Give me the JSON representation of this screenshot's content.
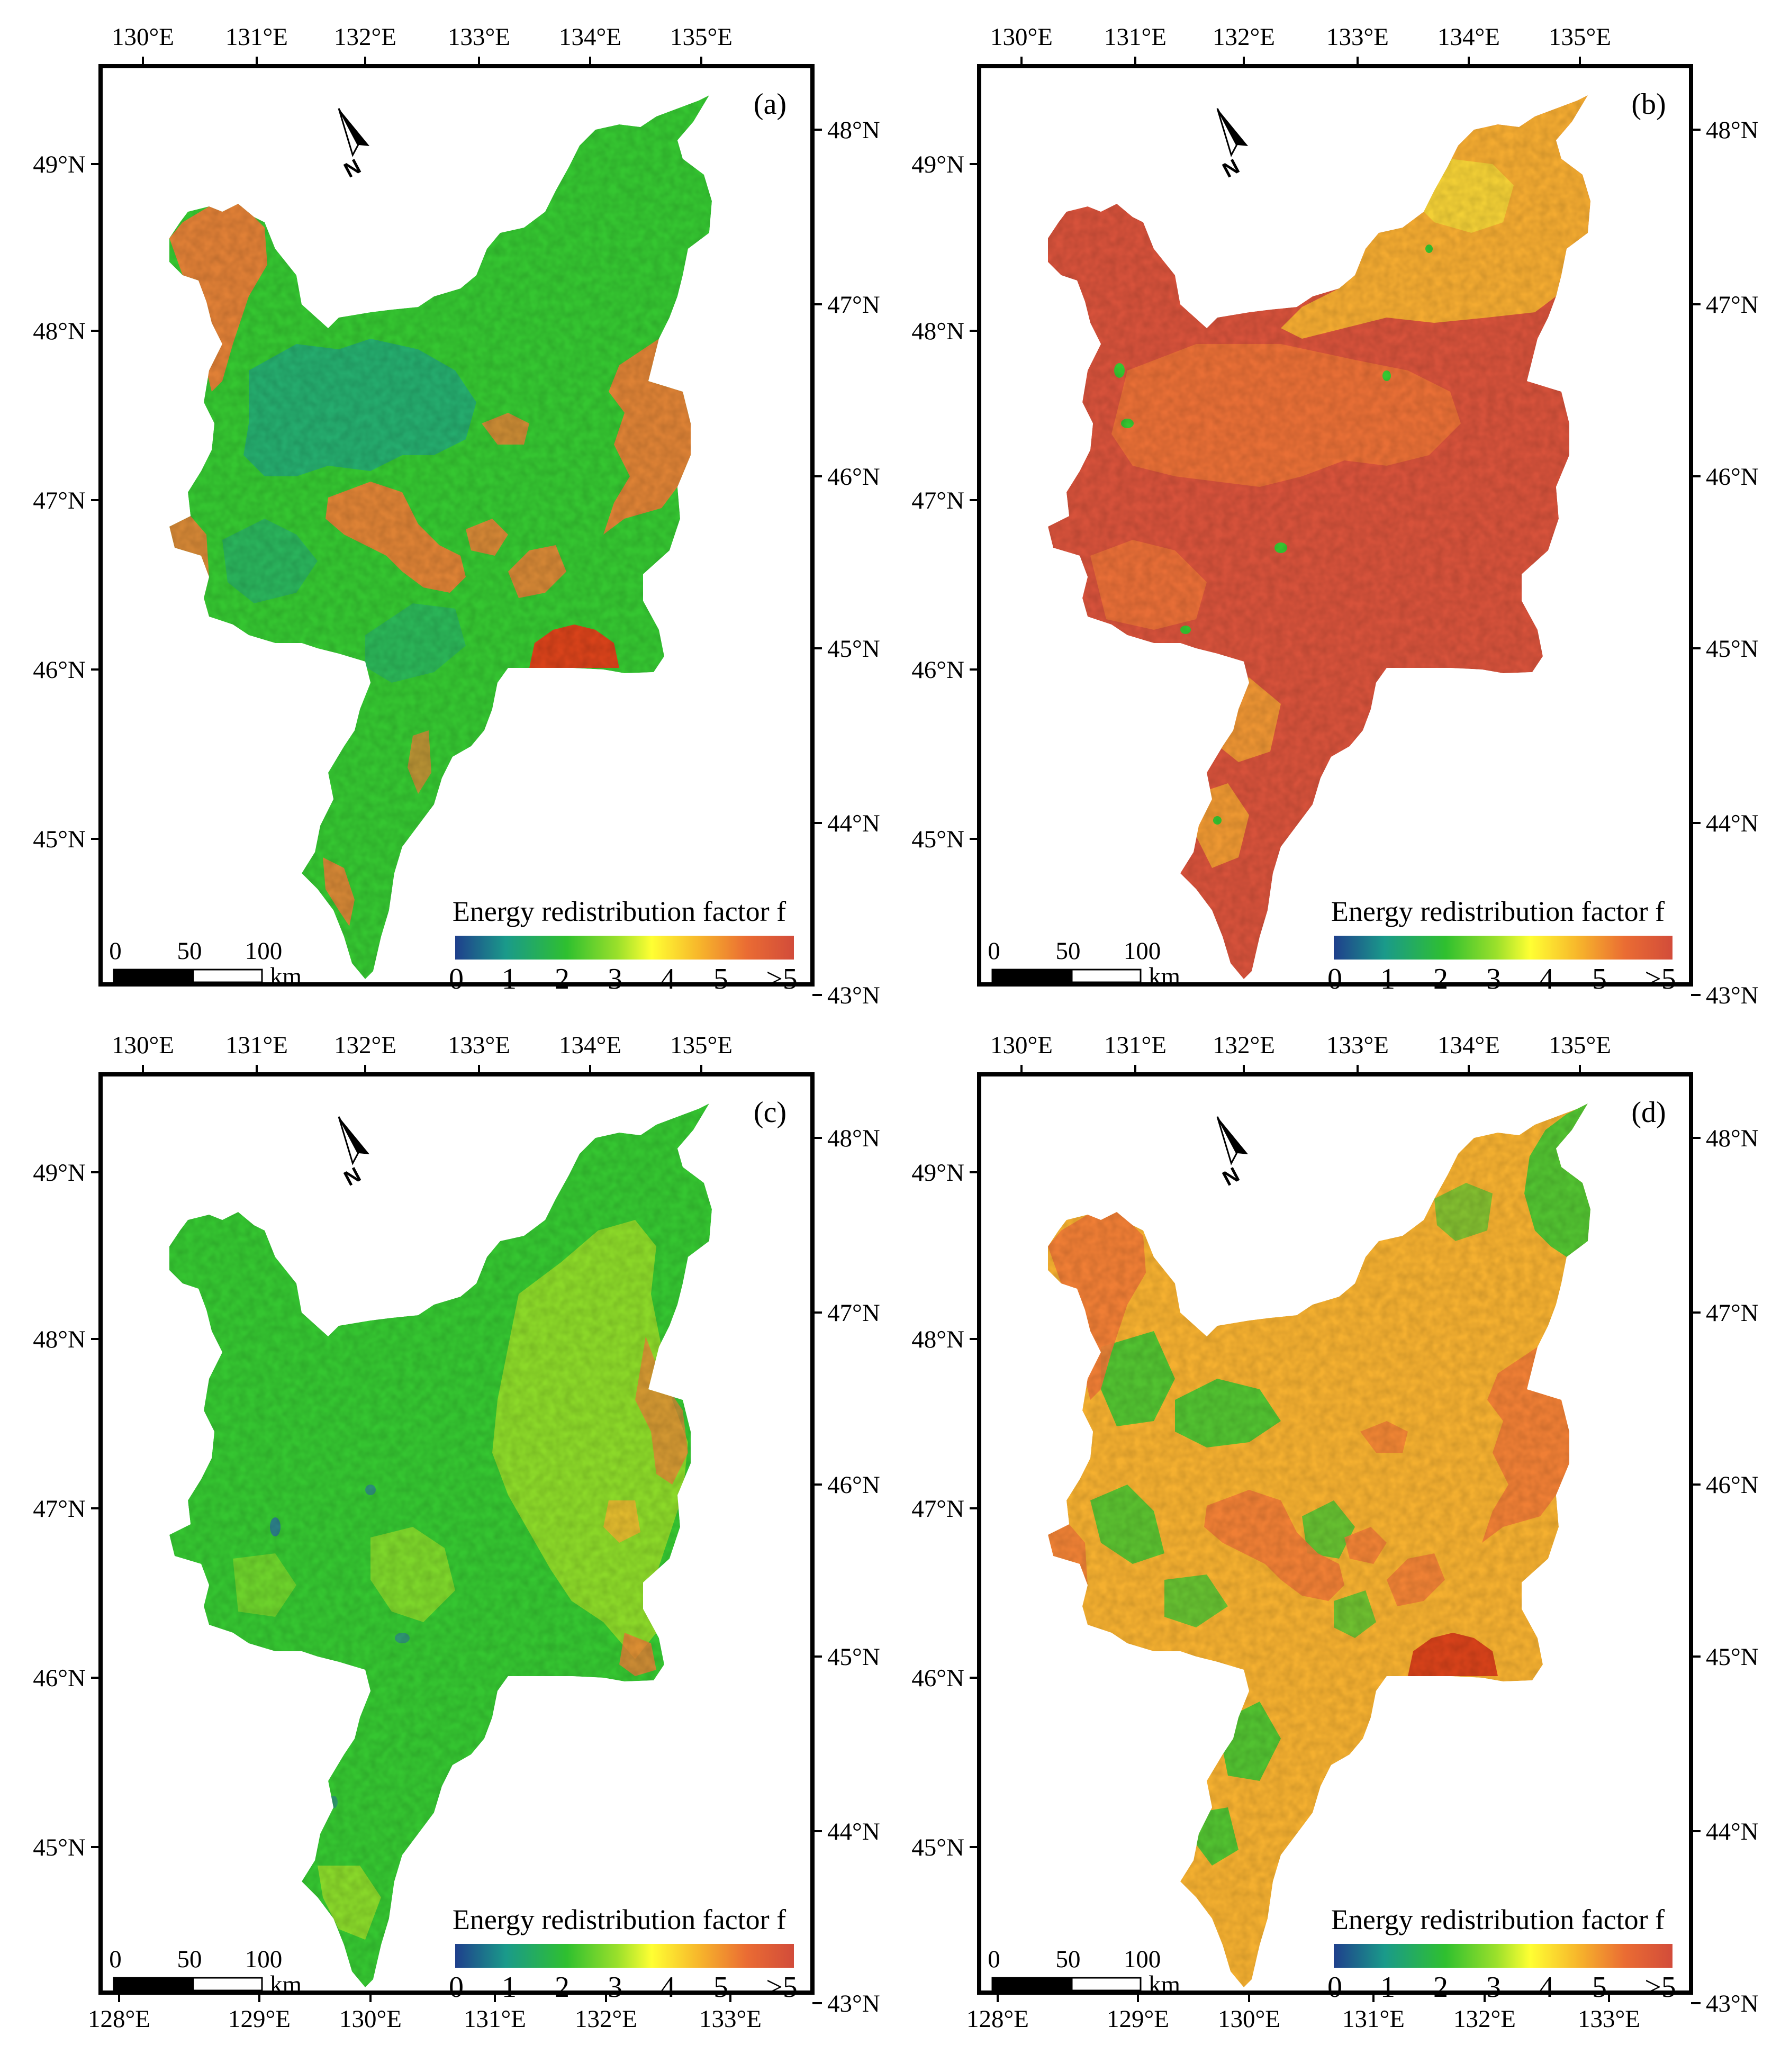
{
  "colors": {
    "ramp": [
      "#1f3f8c",
      "#1a9a8a",
      "#2fc02f",
      "#9be02b",
      "#ffff33",
      "#f7b62b",
      "#ea6c33",
      "#d24c3a"
    ],
    "frame": "#000000",
    "blob_palette": {
      "deep": "#d7523b",
      "orange": "#ef7a36",
      "amber": "#f5b030",
      "yellow": "#f2e93a",
      "lime": "#a5de28",
      "green": "#35c631",
      "teal": "#21a480",
      "blue": "#2a6aa8",
      "dome": "#d8421a"
    }
  },
  "panels": [
    {
      "id": "a",
      "letter": "(a)",
      "top_lon_labels": [
        "130°E",
        "131°E",
        "132°E",
        "133°E",
        "134°E",
        "135°E"
      ],
      "left_lat_labels": [
        "49°N",
        "48°N",
        "47°N",
        "46°N",
        "45°N"
      ],
      "right_lat_labels": [
        "48°N",
        "47°N",
        "46°N",
        "45°N",
        "44°N",
        "43°N"
      ],
      "bottom_lon_labels": [],
      "base": "green",
      "patches": [
        "orange_w",
        "orange_e",
        "orange_c",
        "blue_c",
        "dome",
        "orange_s"
      ],
      "legend": {
        "title": "Energy redistribution factor f",
        "ticks": [
          "0",
          "1",
          "2",
          "3",
          "4",
          "5",
          ">5"
        ]
      },
      "scale_bar": {
        "labels": [
          "0",
          "50",
          "100"
        ],
        "unit": "km"
      },
      "north": {
        "label": "N"
      }
    },
    {
      "id": "b",
      "letter": "(b)",
      "top_lon_labels": [
        "130°E",
        "131°E",
        "132°E",
        "133°E",
        "134°E",
        "135°E"
      ],
      "left_lat_labels": [
        "49°N",
        "48°N",
        "47°N",
        "46°N",
        "45°N"
      ],
      "right_lat_labels": [
        "48°N",
        "47°N",
        "46°N",
        "45°N",
        "44°N",
        "43°N"
      ],
      "bottom_lon_labels": [],
      "base": "deep",
      "patches": [
        "yellow_ne",
        "orange_mix",
        "green_dots"
      ],
      "legend": {
        "title": "Energy redistribution factor f",
        "ticks": [
          "0",
          "1",
          "2",
          "3",
          "4",
          "5",
          ">5"
        ]
      },
      "scale_bar": {
        "labels": [
          "0",
          "50",
          "100"
        ],
        "unit": "km"
      },
      "north": {
        "label": "N"
      }
    },
    {
      "id": "c",
      "letter": "(c)",
      "top_lon_labels": [
        "130°E",
        "131°E",
        "132°E",
        "133°E",
        "134°E",
        "135°E"
      ],
      "left_lat_labels": [
        "49°N",
        "48°N",
        "47°N",
        "46°N",
        "45°N"
      ],
      "right_lat_labels": [
        "48°N",
        "47°N",
        "46°N",
        "45°N",
        "44°N",
        "43°N"
      ],
      "bottom_lon_labels": [
        "128°E",
        "129°E",
        "130°E",
        "131°E",
        "132°E",
        "133°E"
      ],
      "base": "green",
      "patches": [
        "lime_e",
        "orange_e_small",
        "blue_specks",
        "green_dome"
      ],
      "legend": {
        "title": "Energy redistribution factor f",
        "ticks": [
          "0",
          "1",
          "2",
          "3",
          "4",
          "5",
          ">5"
        ]
      },
      "scale_bar": {
        "labels": [
          "0",
          "50",
          "100"
        ],
        "unit": "km"
      },
      "north": {
        "label": "N"
      }
    },
    {
      "id": "d",
      "letter": "(d)",
      "top_lon_labels": [
        "130°E",
        "131°E",
        "132°E",
        "133°E",
        "134°E",
        "135°E"
      ],
      "left_lat_labels": [
        "49°N",
        "48°N",
        "47°N",
        "46°N",
        "45°N"
      ],
      "right_lat_labels": [
        "48°N",
        "47°N",
        "46°N",
        "45°N",
        "44°N",
        "43°N"
      ],
      "bottom_lon_labels": [
        "128°E",
        "129°E",
        "130°E",
        "131°E",
        "132°E",
        "133°E"
      ],
      "base": "amber",
      "patches": [
        "green_mix",
        "orange_w",
        "orange_e",
        "orange_c",
        "dome",
        "green_ne"
      ],
      "legend": {
        "title": "Energy redistribution factor f",
        "ticks": [
          "0",
          "1",
          "2",
          "3",
          "4",
          "5",
          ">5"
        ]
      },
      "scale_bar": {
        "labels": [
          "0",
          "50",
          "100"
        ],
        "unit": "km"
      },
      "north": {
        "label": "N"
      }
    }
  ]
}
